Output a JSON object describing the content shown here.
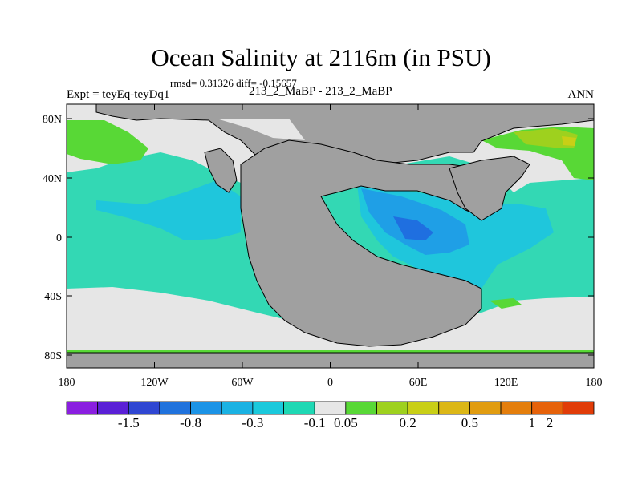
{
  "title": "Ocean Salinity at 2116m (in PSU)",
  "stats": "rmsd= 0.31326 diff= -0.15657",
  "left_label": "Expt = teyEq-teyDq1",
  "center_label": "213_2_MaBP - 213_2_MaBP",
  "right_label": "ANN",
  "x_ticks": [
    "180",
    "120W",
    "60W",
    "0",
    "60E",
    "120E",
    "180"
  ],
  "y_ticks": [
    "80N",
    "40N",
    "0",
    "40S",
    "80S"
  ],
  "colorbar": {
    "colors": [
      "#8a1ee0",
      "#5a1fd6",
      "#2f46d2",
      "#1f72dd",
      "#1b93e6",
      "#1ab2e3",
      "#1ac9dc",
      "#1ed8b4",
      "#e6e6e6",
      "#58d836",
      "#9ed11e",
      "#c9cf16",
      "#dcb716",
      "#e19c10",
      "#e47e0c",
      "#e6620a",
      "#e13c08"
    ],
    "labels": [
      "-1.5",
      "-0.8",
      "-0.3",
      "-0.1",
      "0.05",
      "0.2",
      "0.5",
      "1",
      "2"
    ]
  },
  "colors": {
    "land": "#a0a0a0",
    "near_zero": "#e6e6e6",
    "teal": "#33d8b4",
    "cyan": "#1fc6dc",
    "light_blue": "#1f9fe6",
    "mid_blue": "#1f6fe0",
    "violet": "#5a1fd6",
    "green": "#58d836",
    "yellow_green": "#9ed11e",
    "yellow": "#c9cf16"
  }
}
